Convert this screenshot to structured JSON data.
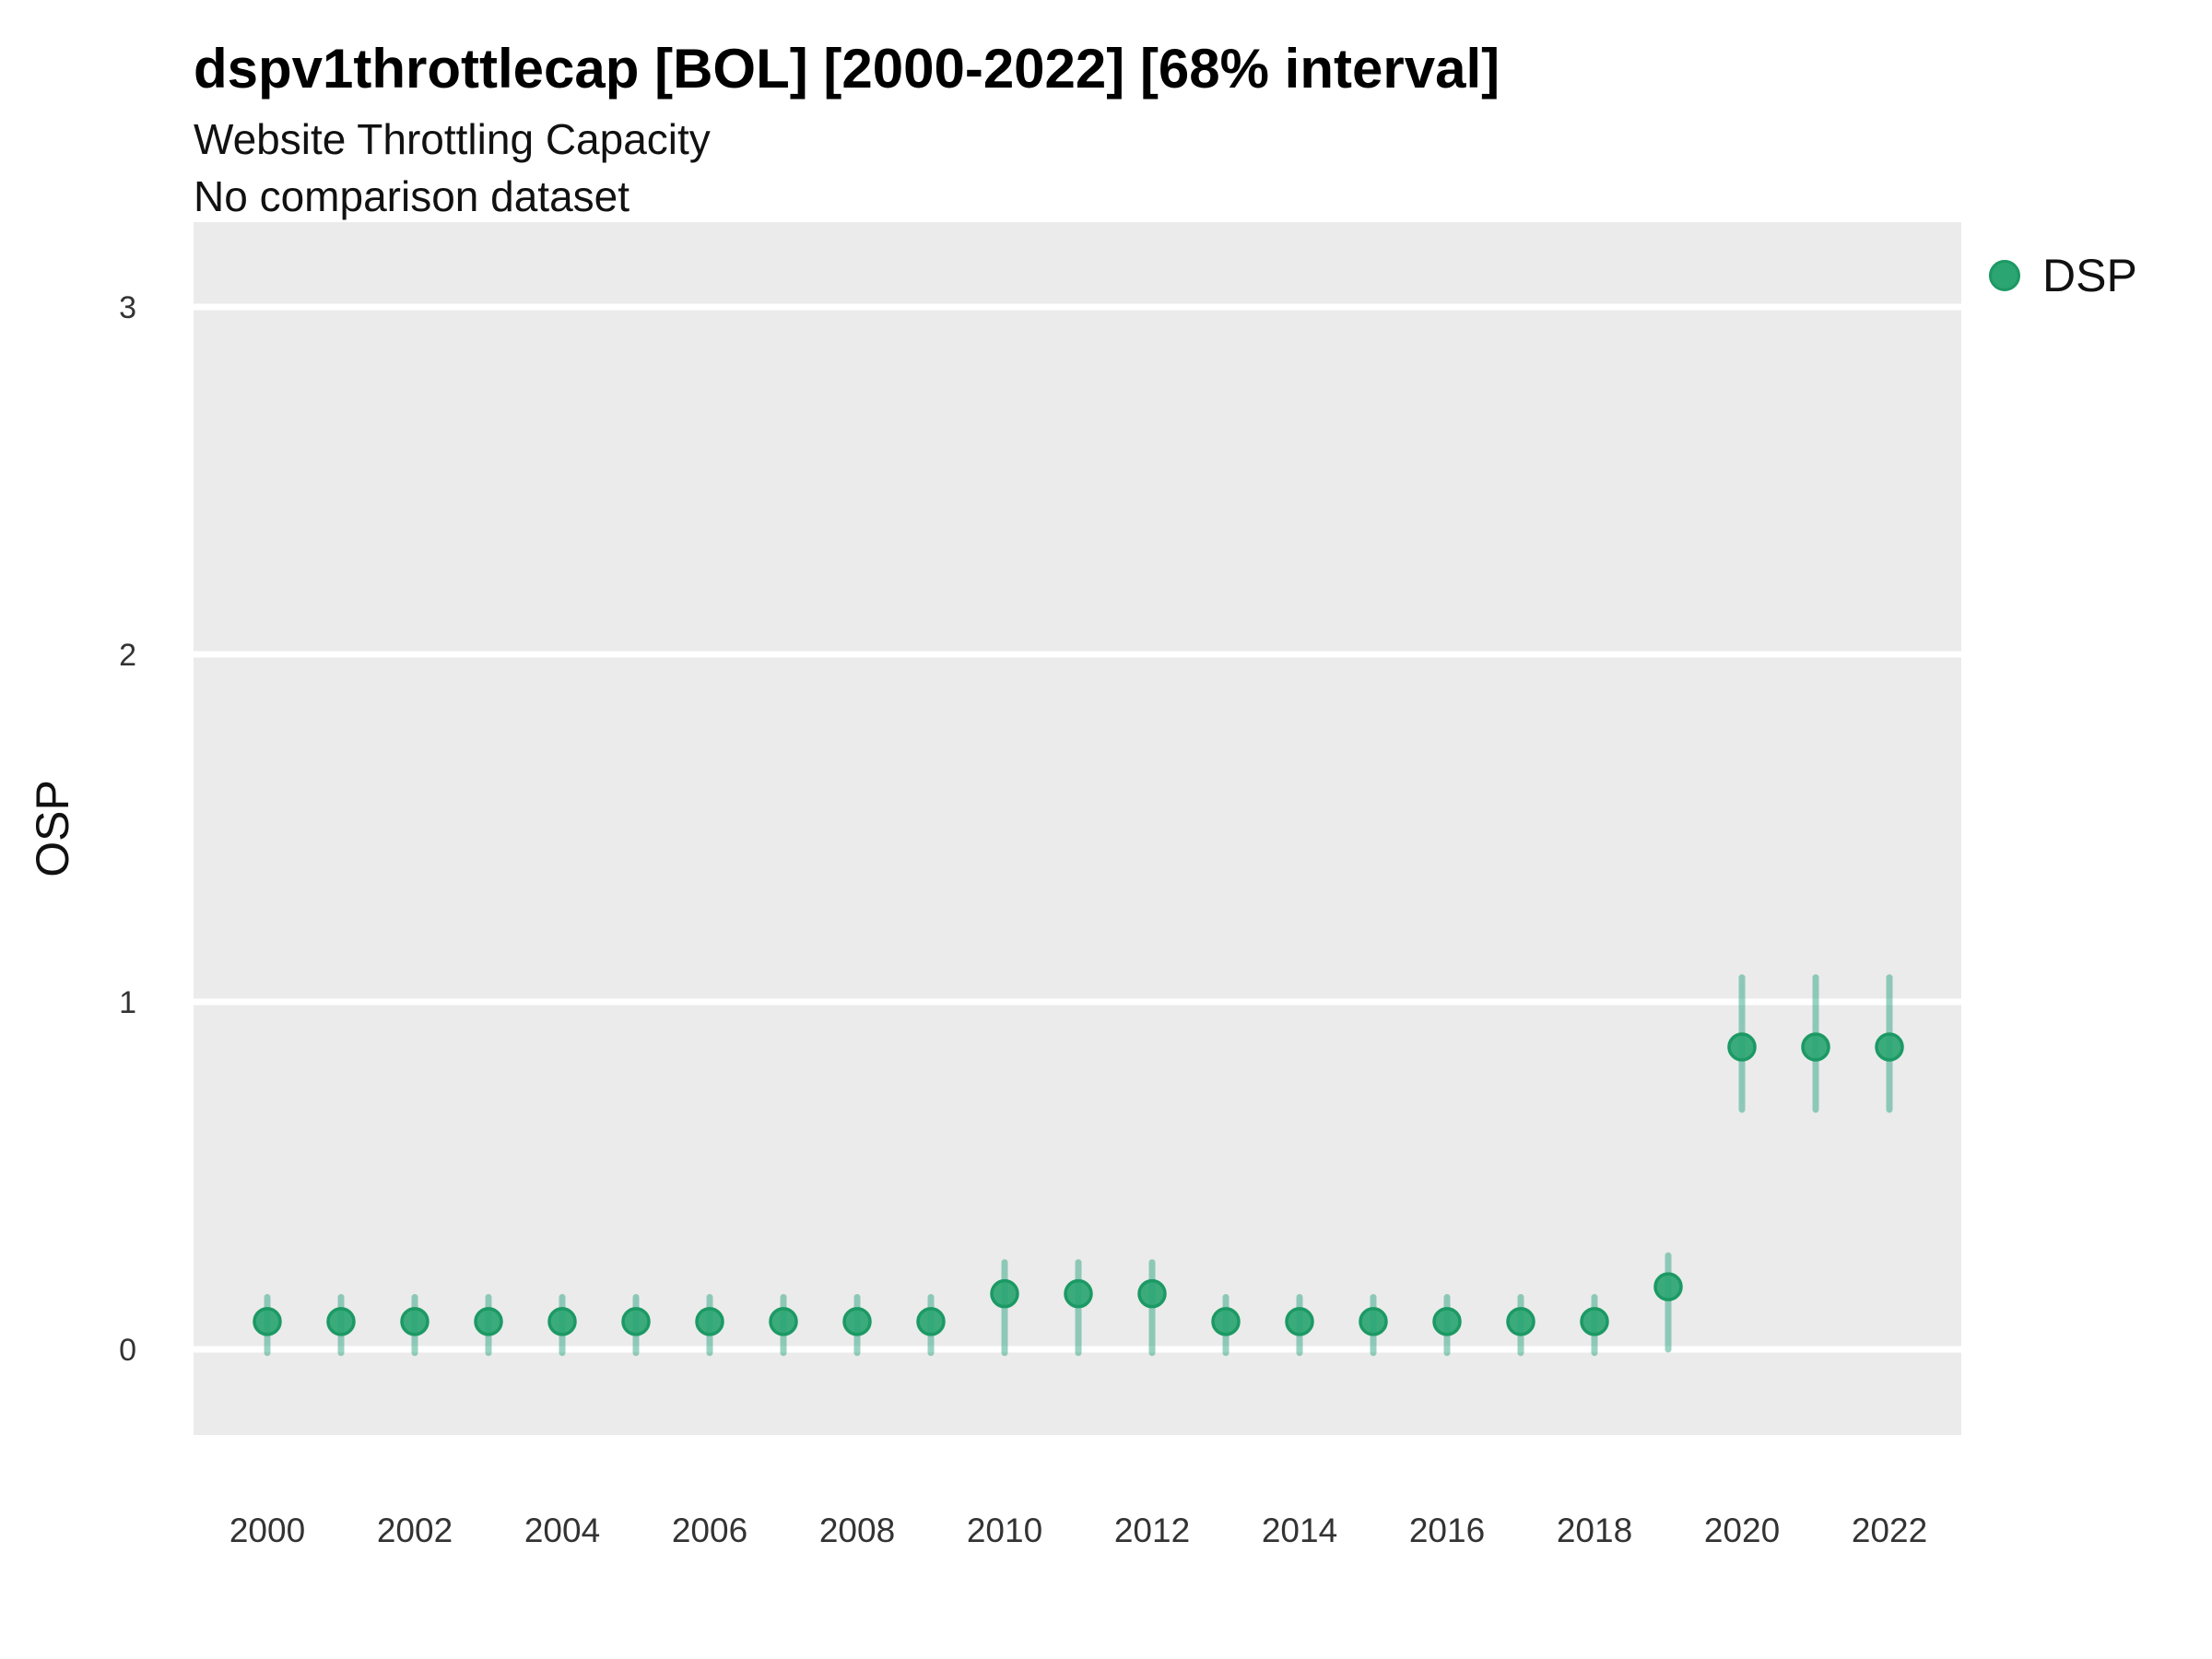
{
  "chart_data": {
    "type": "scatter",
    "subtype": "pointrange-errorbar",
    "title": "dspv1throttlecap [BOL] [2000-2022] [68% interval]",
    "subtitle": "Website Throttling Capacity",
    "note": "No comparison dataset",
    "ylabel": "OSP",
    "xlabel": "",
    "interval": "68%",
    "x": [
      2000,
      2001,
      2002,
      2003,
      2004,
      2005,
      2006,
      2007,
      2008,
      2009,
      2010,
      2011,
      2012,
      2013,
      2014,
      2015,
      2016,
      2017,
      2018,
      2019,
      2020,
      2021,
      2022
    ],
    "series": [
      {
        "name": "DSP",
        "color": "#1B9E77",
        "values": [
          0.08,
          0.08,
          0.08,
          0.08,
          0.08,
          0.08,
          0.08,
          0.08,
          0.08,
          0.08,
          0.16,
          0.16,
          0.16,
          0.08,
          0.08,
          0.08,
          0.08,
          0.08,
          0.08,
          0.18,
          0.87,
          0.87,
          0.87
        ],
        "lo": [
          -0.01,
          -0.01,
          -0.01,
          -0.01,
          -0.01,
          -0.01,
          -0.01,
          -0.01,
          -0.01,
          -0.01,
          -0.01,
          -0.01,
          -0.01,
          -0.01,
          -0.01,
          -0.01,
          -0.01,
          -0.01,
          -0.01,
          0.0,
          0.69,
          0.69,
          0.69
        ],
        "hi": [
          0.15,
          0.15,
          0.15,
          0.15,
          0.15,
          0.15,
          0.15,
          0.15,
          0.15,
          0.15,
          0.25,
          0.25,
          0.25,
          0.15,
          0.15,
          0.15,
          0.15,
          0.15,
          0.15,
          0.27,
          1.07,
          1.07,
          1.07
        ]
      }
    ],
    "yticks": [
      0,
      1,
      2,
      3
    ],
    "xticks": [
      2000,
      2002,
      2004,
      2006,
      2008,
      2010,
      2012,
      2014,
      2016,
      2018,
      2020,
      2022
    ],
    "ylim": [
      -0.25,
      3.25
    ],
    "grid": "horizontal-major-only",
    "legend_position": "right"
  },
  "legend": {
    "items": [
      {
        "label": "DSP",
        "color": "#1B9E77"
      }
    ]
  },
  "colors": {
    "accent_green": "#1B9E77",
    "point_fill": "#2BA572",
    "point_stroke": "#1C9964",
    "errorbar_green": "#1B9E77",
    "panel_bg": "#EBEBEB",
    "gridline": "#FFFFFF",
    "tick_text": "#333333"
  }
}
